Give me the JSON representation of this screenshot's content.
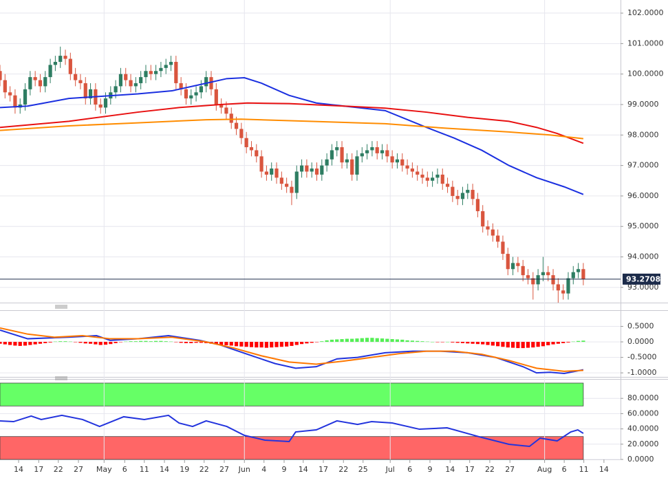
{
  "chart_data": [
    {
      "type": "candlestick",
      "xlim": [
        0,
        123.4
      ],
      "ylim": [
        92.5,
        102.43
      ],
      "up_color": "#2e7d62",
      "down_color": "#d9553e",
      "grid": true,
      "yticks": [
        {
          "value": 102,
          "label": "102.0000"
        },
        {
          "value": 101,
          "label": "101.0000"
        },
        {
          "value": 100,
          "label": "100.0000"
        },
        {
          "value": 99,
          "label": "99.0000"
        },
        {
          "value": 98,
          "label": "98.0000"
        },
        {
          "value": 97,
          "label": "97.0000"
        },
        {
          "value": 96,
          "label": "96.0000"
        },
        {
          "value": 95,
          "label": "95.0000"
        },
        {
          "value": 94,
          "label": "94.0000"
        },
        {
          "value": 93,
          "label": "93.0000"
        }
      ],
      "open": [
        100.1,
        99.8,
        99.4,
        99.3,
        98.9,
        99.0,
        99.5,
        99.9,
        99.8,
        99.6,
        99.9,
        100.3,
        100.4,
        100.6,
        100.5,
        100.0,
        99.8,
        99.7,
        99.2,
        99.5,
        99.0,
        98.9,
        99.2,
        99.4,
        99.6,
        100.0,
        99.8,
        99.6,
        99.7,
        99.9,
        100.1,
        100.0,
        100.1,
        100.2,
        100.3,
        100.4,
        99.7,
        99.5,
        99.2,
        99.3,
        99.4,
        99.6,
        99.9,
        99.5,
        99.0,
        98.9,
        98.7,
        98.4,
        98.2,
        97.9,
        97.6,
        97.5,
        97.3,
        96.8,
        96.7,
        96.9,
        96.6,
        96.4,
        96.3,
        96.1,
        96.8,
        97.0,
        96.8,
        96.9,
        96.7,
        97.0,
        97.2,
        97.5,
        97.6,
        97.1,
        97.2,
        96.7,
        97.3,
        97.4,
        97.5,
        97.6,
        97.4,
        97.5,
        97.3,
        97.1,
        97.2,
        97.0,
        96.9,
        96.8,
        96.7,
        96.6,
        96.5,
        96.6,
        96.7,
        96.4,
        96.3,
        96.0,
        95.9,
        96.1,
        96.2,
        95.9,
        95.5,
        95.0,
        94.9,
        94.7,
        94.5,
        94.1,
        93.6,
        93.8,
        93.7,
        93.4,
        93.3,
        93.1,
        93.4,
        93.5,
        93.4,
        93.1,
        92.9,
        92.8,
        93.3,
        93.5,
        93.6
      ],
      "high": [
        100.3,
        100.0,
        99.6,
        99.5,
        99.2,
        99.7,
        100.1,
        100.1,
        100.0,
        100.1,
        100.5,
        100.6,
        100.9,
        100.8,
        100.7,
        100.2,
        100.0,
        99.9,
        99.7,
        99.7,
        99.2,
        99.4,
        99.6,
        99.8,
        100.2,
        100.2,
        100.0,
        99.9,
        100.1,
        100.3,
        100.3,
        100.3,
        100.4,
        100.5,
        100.6,
        100.6,
        99.9,
        99.7,
        99.5,
        99.6,
        99.8,
        100.1,
        100.1,
        99.7,
        99.2,
        99.1,
        98.9,
        98.6,
        98.4,
        98.1,
        97.8,
        97.7,
        97.5,
        97.0,
        97.1,
        97.1,
        96.8,
        96.6,
        96.5,
        97.0,
        97.2,
        97.2,
        97.1,
        97.1,
        97.2,
        97.4,
        97.7,
        97.8,
        97.8,
        97.4,
        97.4,
        97.5,
        97.6,
        97.7,
        97.8,
        97.8,
        97.7,
        97.7,
        97.5,
        97.4,
        97.4,
        97.2,
        97.1,
        97.0,
        96.9,
        96.8,
        96.8,
        96.9,
        96.9,
        96.6,
        96.5,
        96.2,
        96.3,
        96.4,
        96.4,
        96.1,
        95.7,
        95.2,
        95.1,
        94.9,
        94.7,
        94.3,
        94.0,
        94.0,
        93.9,
        93.6,
        93.5,
        93.6,
        94.0,
        93.7,
        93.6,
        93.3,
        93.1,
        93.5,
        93.7,
        93.8,
        93.8
      ],
      "low": [
        99.6,
        99.2,
        99.1,
        98.7,
        98.7,
        98.8,
        99.3,
        99.6,
        99.4,
        99.4,
        99.7,
        100.1,
        100.2,
        100.3,
        99.8,
        99.6,
        99.5,
        99.0,
        99.0,
        98.8,
        98.7,
        98.7,
        99.0,
        99.2,
        99.4,
        99.6,
        99.4,
        99.4,
        99.5,
        99.7,
        99.8,
        99.8,
        99.9,
        100.0,
        100.1,
        99.5,
        99.3,
        99.0,
        99.0,
        99.1,
        99.2,
        99.4,
        99.3,
        98.8,
        98.7,
        98.5,
        98.2,
        98.0,
        97.7,
        97.4,
        97.3,
        97.1,
        96.6,
        96.5,
        96.5,
        96.4,
        96.2,
        96.1,
        95.7,
        95.9,
        96.6,
        96.6,
        96.6,
        96.5,
        96.5,
        96.8,
        97.0,
        97.3,
        96.9,
        96.9,
        96.5,
        96.5,
        97.1,
        97.2,
        97.3,
        97.2,
        97.2,
        97.1,
        96.9,
        96.9,
        96.8,
        96.7,
        96.6,
        96.5,
        96.4,
        96.3,
        96.3,
        96.4,
        96.2,
        96.1,
        95.8,
        95.7,
        95.7,
        95.9,
        95.7,
        95.3,
        94.8,
        94.7,
        94.5,
        94.3,
        93.9,
        93.4,
        93.4,
        93.5,
        93.2,
        93.1,
        92.6,
        92.9,
        93.2,
        93.2,
        92.9,
        92.5,
        92.6,
        92.6,
        93.1,
        93.3,
        93.07
      ],
      "close": [
        99.8,
        99.4,
        99.3,
        98.9,
        99.0,
        99.5,
        99.9,
        99.8,
        99.6,
        99.9,
        100.3,
        100.4,
        100.6,
        100.5,
        100.0,
        99.8,
        99.7,
        99.2,
        99.5,
        99.0,
        98.9,
        99.2,
        99.4,
        99.6,
        100.0,
        99.8,
        99.6,
        99.7,
        99.9,
        100.1,
        100.0,
        100.1,
        100.2,
        100.3,
        100.4,
        99.7,
        99.5,
        99.2,
        99.3,
        99.4,
        99.6,
        99.9,
        99.5,
        99.0,
        98.9,
        98.7,
        98.4,
        98.2,
        97.9,
        97.6,
        97.5,
        97.3,
        96.8,
        96.7,
        96.9,
        96.6,
        96.4,
        96.3,
        96.1,
        96.8,
        97.0,
        96.8,
        96.9,
        96.7,
        97.0,
        97.2,
        97.5,
        97.6,
        97.1,
        97.2,
        96.7,
        97.3,
        97.4,
        97.5,
        97.6,
        97.4,
        97.5,
        97.3,
        97.1,
        97.2,
        97.0,
        96.9,
        96.8,
        96.7,
        96.6,
        96.5,
        96.6,
        96.7,
        96.4,
        96.3,
        96.0,
        95.9,
        96.1,
        96.2,
        95.9,
        95.5,
        95.0,
        94.9,
        94.7,
        94.5,
        94.1,
        93.6,
        93.8,
        93.7,
        93.4,
        93.3,
        93.1,
        93.4,
        93.5,
        93.4,
        93.1,
        92.9,
        92.8,
        93.3,
        93.5,
        93.6,
        93.27
      ],
      "series": [
        {
          "color": "#1a2fe0",
          "x": [
            0,
            5.5,
            13.7,
            27.4,
            34.2,
            41,
            45.1,
            48.6,
            52,
            57.5,
            62.9,
            68.4,
            76.6,
            84.8,
            90.3,
            95.8,
            101.2,
            106.7,
            112.2,
            116
          ],
          "values": [
            98.9,
            98.95,
            99.2,
            99.35,
            99.45,
            99.7,
            99.85,
            99.88,
            99.7,
            99.3,
            99.05,
            98.95,
            98.8,
            98.25,
            97.9,
            97.5,
            97.0,
            96.6,
            96.3,
            96.05
          ]
        },
        {
          "color": "#e81010",
          "x": [
            0,
            13.7,
            27.4,
            35.6,
            43.8,
            49.2,
            57.5,
            68.4,
            76.6,
            84.8,
            93,
            101.2,
            106.7,
            110.8,
            116
          ],
          "values": [
            98.25,
            98.45,
            98.75,
            98.9,
            99.0,
            99.05,
            99.03,
            98.95,
            98.88,
            98.75,
            98.58,
            98.45,
            98.25,
            98.05,
            97.73
          ]
        },
        {
          "color": "#ff8c00",
          "x": [
            0,
            13.7,
            27.4,
            41,
            47.9,
            61.6,
            76.6,
            88.9,
            101.2,
            109.4,
            116
          ],
          "values": [
            98.15,
            98.3,
            98.4,
            98.5,
            98.52,
            98.45,
            98.37,
            98.22,
            98.1,
            98.0,
            97.88
          ]
        }
      ],
      "last_price": 93.2708,
      "last_price_color": "#1c2b4a"
    },
    {
      "type": "macd",
      "xlim": [
        0,
        123.4
      ],
      "ylim": [
        -1.13,
        1.0
      ],
      "up_color": "#55ee55",
      "down_color": "#ff0000",
      "grid": true,
      "yticks": [
        {
          "value": 0.5,
          "label": "0.5000"
        },
        {
          "value": 0,
          "label": "0.0000"
        },
        {
          "value": -0.5,
          "label": "-0.5000"
        },
        {
          "value": -1,
          "label": "-1.0000"
        }
      ],
      "histogram": [
        -0.06,
        -0.08,
        -0.1,
        -0.12,
        -0.13,
        -0.12,
        -0.1,
        -0.08,
        -0.06,
        -0.04,
        -0.02,
        0.01,
        0.02,
        0.02,
        0.01,
        -0.01,
        -0.03,
        -0.05,
        -0.06,
        -0.08,
        -0.1,
        -0.09,
        -0.07,
        -0.04,
        -0.01,
        0.01,
        0.02,
        0.02,
        0.03,
        0.03,
        0.02,
        0.03,
        0.03,
        0.02,
        0.01,
        -0.01,
        -0.03,
        -0.04,
        -0.04,
        -0.03,
        -0.03,
        -0.04,
        -0.06,
        -0.08,
        -0.1,
        -0.11,
        -0.12,
        -0.14,
        -0.15,
        -0.16,
        -0.17,
        -0.18,
        -0.18,
        -0.19,
        -0.18,
        -0.17,
        -0.16,
        -0.15,
        -0.13,
        -0.1,
        -0.07,
        -0.05,
        -0.03,
        -0.01,
        0.02,
        0.05,
        0.07,
        0.08,
        0.09,
        0.1,
        0.1,
        0.11,
        0.12,
        0.13,
        0.13,
        0.12,
        0.11,
        0.1,
        0.09,
        0.08,
        0.07,
        0.05,
        0.04,
        0.03,
        0.02,
        0.01,
        0.0,
        -0.01,
        -0.01,
        0.0,
        -0.02,
        -0.03,
        -0.04,
        -0.05,
        -0.06,
        -0.07,
        -0.08,
        -0.1,
        -0.12,
        -0.14,
        -0.16,
        -0.18,
        -0.19,
        -0.2,
        -0.2,
        -0.19,
        -0.18,
        -0.16,
        -0.14,
        -0.11,
        -0.08,
        -0.06,
        -0.04,
        -0.02,
        0.01,
        0.03,
        0.04
      ],
      "series": [
        {
          "color": "#2233dd",
          "x": [
            0,
            5.5,
            13.7,
            19.2,
            21.9,
            27.4,
            33.5,
            39.7,
            43.8,
            49.2,
            54.7,
            58.8,
            62.9,
            67,
            71.1,
            76.6,
            82.1,
            87.6,
            93,
            98.5,
            104,
            106.7,
            109.4,
            112.2,
            116
          ],
          "values": [
            0.38,
            0.1,
            0.15,
            0.2,
            0.05,
            0.1,
            0.2,
            0.05,
            -0.1,
            -0.4,
            -0.7,
            -0.85,
            -0.8,
            -0.55,
            -0.5,
            -0.35,
            -0.3,
            -0.3,
            -0.35,
            -0.5,
            -0.8,
            -1.0,
            -0.98,
            -1.02,
            -0.9
          ]
        },
        {
          "color": "#ff7700",
          "x": [
            0,
            5.5,
            10.9,
            16.4,
            21.9,
            27.4,
            34.2,
            41,
            46.5,
            52,
            57.5,
            62.9,
            68.4,
            73.9,
            79.3,
            84.8,
            90.3,
            95.8,
            101.2,
            106.7,
            112.2,
            116
          ],
          "values": [
            0.45,
            0.25,
            0.15,
            0.2,
            0.1,
            0.1,
            0.15,
            0.0,
            -0.2,
            -0.45,
            -0.65,
            -0.72,
            -0.62,
            -0.5,
            -0.38,
            -0.3,
            -0.3,
            -0.4,
            -0.6,
            -0.85,
            -0.95,
            -0.92
          ]
        }
      ]
    },
    {
      "type": "rsi",
      "xlim": [
        0,
        123.4
      ],
      "ylim": [
        0,
        104.5
      ],
      "grid": true,
      "yticks": [
        {
          "value": 80,
          "label": "80.0000"
        },
        {
          "value": 60,
          "label": "60.0000"
        },
        {
          "value": 40,
          "label": "40.0000"
        },
        {
          "value": 20,
          "label": "20.0000"
        },
        {
          "value": 0,
          "label": "0.0000"
        }
      ],
      "bands": [
        {
          "range": [
            70,
            100
          ],
          "color": "#66ff66"
        },
        {
          "range": [
            0,
            30
          ],
          "color": "#ff6666"
        }
      ],
      "series": [
        {
          "color": "#2233dd",
          "x": [
            0,
            2.7,
            6.2,
            8.2,
            12.3,
            16.4,
            19.8,
            24.6,
            28.7,
            33.5,
            35.6,
            38.3,
            41,
            45.1,
            48.6,
            52.7,
            57.5,
            58.8,
            62.9,
            67,
            71.1,
            73.9,
            78,
            83.4,
            88.9,
            95.8,
            101.2,
            105.3,
            107.4,
            110.8,
            113.5,
            114.9,
            116
          ],
          "values": [
            50.5,
            49.5,
            56.8,
            52.3,
            57.7,
            52.3,
            43.2,
            55.9,
            52.3,
            57.7,
            47.7,
            43.2,
            50.5,
            43.2,
            31.5,
            25.2,
            23.4,
            36,
            38.7,
            50.5,
            45.9,
            49.5,
            47.7,
            39.6,
            41.4,
            28.8,
            19.8,
            17.1,
            27.9,
            24.3,
            36,
            38.7,
            34.2
          ]
        }
      ],
      "xticks": [
        {
          "value": 3.7,
          "label": "14"
        },
        {
          "value": 7.7,
          "label": "17"
        },
        {
          "value": 11.6,
          "label": "22"
        },
        {
          "value": 15.6,
          "label": "27"
        },
        {
          "value": 20.7,
          "label": "May"
        },
        {
          "value": 24.8,
          "label": "6"
        },
        {
          "value": 28.7,
          "label": "11"
        },
        {
          "value": 32.7,
          "label": "14"
        },
        {
          "value": 36.7,
          "label": "19"
        },
        {
          "value": 40.6,
          "label": "22"
        },
        {
          "value": 44.6,
          "label": "27"
        },
        {
          "value": 48.6,
          "label": "Jun"
        },
        {
          "value": 52.5,
          "label": "4"
        },
        {
          "value": 56.5,
          "label": "9"
        },
        {
          "value": 60.3,
          "label": "14"
        },
        {
          "value": 64.3,
          "label": "17"
        },
        {
          "value": 68.3,
          "label": "22"
        },
        {
          "value": 72.2,
          "label": "25"
        },
        {
          "value": 77.6,
          "label": "Jul"
        },
        {
          "value": 81.5,
          "label": "6"
        },
        {
          "value": 85.5,
          "label": "9"
        },
        {
          "value": 89.5,
          "label": "14"
        },
        {
          "value": 93.4,
          "label": "17"
        },
        {
          "value": 97.4,
          "label": "22"
        },
        {
          "value": 101.4,
          "label": "27"
        },
        {
          "value": 108.3,
          "label": "Aug"
        },
        {
          "value": 112.2,
          "label": "6"
        },
        {
          "value": 116.1,
          "label": "11"
        },
        {
          "value": 120.1,
          "label": "14"
        }
      ]
    }
  ]
}
